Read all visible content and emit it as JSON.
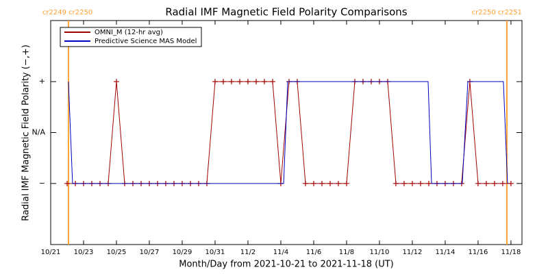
{
  "chart_data": {
    "type": "line",
    "title": "Radial IMF Magnetic Field Polarity Comparisons",
    "xlabel": "Month/Day from 2021-10-21 to 2021-11-18 (UT)",
    "ylabel": "Radial IMF Magnetic Field Polarity (−,+)",
    "xlim": [
      0,
      28.67
    ],
    "ylim": [
      -2.2,
      2.2
    ],
    "xticks": [
      {
        "value": 0,
        "label": "10/21"
      },
      {
        "value": 2,
        "label": "10/23"
      },
      {
        "value": 4,
        "label": "10/25"
      },
      {
        "value": 6,
        "label": "10/27"
      },
      {
        "value": 8,
        "label": "10/29"
      },
      {
        "value": 10,
        "label": "10/31"
      },
      {
        "value": 12,
        "label": "11/2"
      },
      {
        "value": 14,
        "label": "11/4"
      },
      {
        "value": 16,
        "label": "11/6"
      },
      {
        "value": 18,
        "label": "11/8"
      },
      {
        "value": 20,
        "label": "11/10"
      },
      {
        "value": 22,
        "label": "11/12"
      },
      {
        "value": 24,
        "label": "11/14"
      },
      {
        "value": 26,
        "label": "11/16"
      },
      {
        "value": 28,
        "label": "11/18"
      }
    ],
    "yticks": [
      {
        "value": -1,
        "label": "−"
      },
      {
        "value": 0,
        "label": "N/A"
      },
      {
        "value": 1,
        "label": "+"
      }
    ],
    "legend": "upper left",
    "markers": [
      {
        "x": 1.08,
        "label": "cr2249 cr2250",
        "color": "#ffa030"
      },
      {
        "x": 27.75,
        "label": "cr2250 cr2251",
        "color": "#ffa030"
      }
    ],
    "series": [
      {
        "name": "OMNI_M (12-hr avg)",
        "color": "#a00000",
        "point_markers": true,
        "x": [
          1.0,
          1.5,
          2.0,
          2.5,
          3.0,
          3.5,
          4.0,
          4.5,
          5.0,
          5.5,
          6.0,
          6.5,
          7.0,
          7.5,
          8.0,
          8.5,
          9.0,
          9.5,
          10.0,
          10.5,
          11.0,
          11.5,
          12.0,
          12.5,
          13.0,
          13.5,
          14.0,
          14.5,
          15.0,
          15.5,
          16.0,
          16.5,
          17.0,
          17.5,
          18.0,
          18.5,
          19.0,
          19.5,
          20.0,
          20.5,
          21.0,
          21.5,
          22.0,
          22.5,
          23.0,
          23.5,
          24.0,
          24.5,
          25.0,
          25.5,
          26.0,
          26.5,
          27.0,
          27.5,
          28.0
        ],
        "values": [
          -1,
          -1,
          -1,
          -1,
          -1,
          -1,
          1,
          -1,
          -1,
          -1,
          -1,
          -1,
          -1,
          -1,
          -1,
          -1,
          -1,
          -1,
          1,
          1,
          1,
          1,
          1,
          1,
          1,
          1,
          -1,
          1,
          1,
          -1,
          -1,
          -1,
          -1,
          -1,
          -1,
          1,
          1,
          1,
          1,
          1,
          -1,
          -1,
          -1,
          -1,
          -1,
          -1,
          -1,
          -1,
          -1,
          1,
          -1,
          -1,
          -1,
          -1,
          -1
        ]
      },
      {
        "name": "Predictive Science MAS Model",
        "color": "#0000c0",
        "point_markers": false,
        "x": [
          1.08,
          1.33,
          14.17,
          14.42,
          22.96,
          23.17,
          25.04,
          25.38,
          27.54,
          27.79
        ],
        "values": [
          1,
          -1,
          -1,
          1,
          1,
          -1,
          -1,
          1,
          1,
          -1
        ]
      }
    ]
  }
}
